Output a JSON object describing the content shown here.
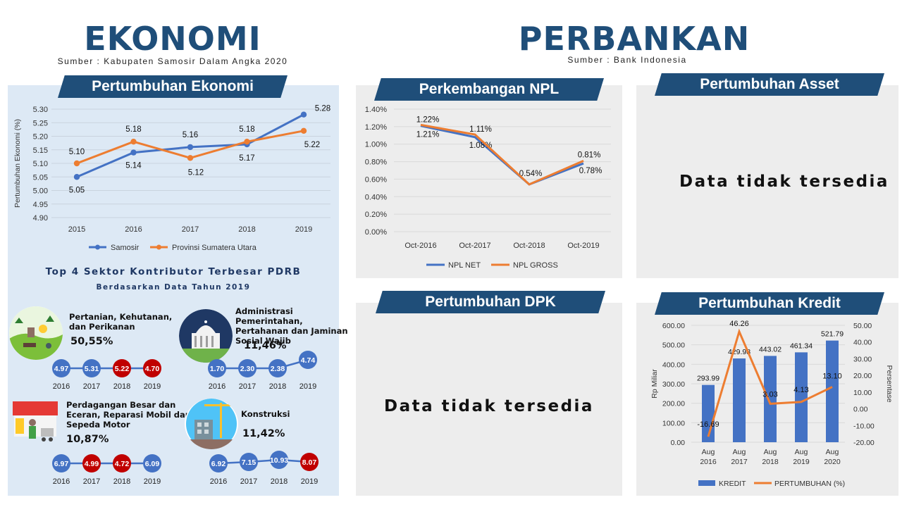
{
  "header": {
    "ekonomi_title": "EKONOMI",
    "ekonomi_source": "Sumber : Kabupaten Samosir Dalam Angka 2020",
    "perbankan_title": "PERBANKAN",
    "perbankan_source": "Sumber : Bank Indonesia"
  },
  "banners": {
    "pertumbuhan_ekonomi": "Pertumbuhan Ekonomi",
    "npl": "Perkembangan NPL",
    "asset": "Pertumbuhan Asset",
    "dpk": "Pertumbuhan DPK",
    "kredit": "Pertumbuhan Kredit"
  },
  "no_data": {
    "asset": "Data tidak tersedia",
    "dpk": "Data tidak tersedia"
  },
  "sectors": {
    "title": "Top 4 Sektor Kontributor Terbesar PDRB",
    "subtitle": "Berdasarkan Data Tahun 2019",
    "items": [
      {
        "name": "Pertanian, Kehutanan, dan Perikanan",
        "share": "50,55%",
        "values": [
          "4.97",
          "5.31",
          "5.22",
          "4.70"
        ],
        "years": [
          "2016",
          "2017",
          "2018",
          "2019"
        ]
      },
      {
        "name": "Administrasi Pemerintahan, Pertahanan dan Jaminan Sosial Wajib",
        "share": "11,46%",
        "values": [
          "1.70",
          "2.30",
          "2.38",
          "4.74"
        ],
        "years": [
          "2016",
          "2017",
          "2018",
          "2019"
        ]
      },
      {
        "name": "Perdagangan Besar dan Eceran, Reparasi Mobil dan Sepeda Motor",
        "share": "10,87%",
        "values": [
          "6.97",
          "4.99",
          "4.72",
          "6.09"
        ],
        "years": [
          "2016",
          "2017",
          "2018",
          "2019"
        ]
      },
      {
        "name": "Konstruksi",
        "share": "11,42%",
        "values": [
          "6.92",
          "7.15",
          "10.93",
          "8.07"
        ],
        "years": [
          "2016",
          "2017",
          "2018",
          "2019"
        ]
      }
    ]
  },
  "colors": {
    "navy": "#1f4e79",
    "blue": "#4472c4",
    "orange": "#ed7d31",
    "red": "#c00000"
  },
  "chart_data": [
    {
      "id": "pertumbuhan-ekonomi",
      "type": "line",
      "x": [
        "2015",
        "2016",
        "2017",
        "2018",
        "2019"
      ],
      "ylabel": "Pertumbuhan Ekonomi (%)",
      "ylim": [
        4.9,
        5.3
      ],
      "yticks": [
        "4.90",
        "4.95",
        "5.00",
        "5.05",
        "5.10",
        "5.15",
        "5.20",
        "5.25",
        "5.30"
      ],
      "grid": true,
      "legend": "bottom",
      "series": [
        {
          "name": "Samosir",
          "values": [
            5.05,
            5.14,
            5.16,
            5.17,
            5.28
          ],
          "labels": [
            "5.05",
            "5.14",
            "5.16",
            "5.17",
            "5.28"
          ]
        },
        {
          "name": "Provinsi Sumatera Utara",
          "values": [
            5.1,
            5.18,
            5.12,
            5.18,
            5.22
          ],
          "labels": [
            "5.10",
            "5.18",
            "5.12",
            "5.18",
            "5.22"
          ]
        }
      ]
    },
    {
      "id": "npl",
      "type": "line",
      "x": [
        "Oct-2016",
        "Oct-2017",
        "Oct-2018",
        "Oct-2019"
      ],
      "ylim": [
        0,
        1.4
      ],
      "yticks": [
        "0.00%",
        "0.20%",
        "0.40%",
        "0.60%",
        "0.80%",
        "1.00%",
        "1.20%",
        "1.40%"
      ],
      "grid": true,
      "legend": "bottom",
      "series": [
        {
          "name": "NPL NET",
          "values": [
            1.21,
            1.08,
            0.54,
            0.78
          ],
          "labels": [
            "1.21%",
            "1.08%",
            "0.54%",
            "0.78%"
          ]
        },
        {
          "name": "NPL GROSS",
          "values": [
            1.22,
            1.11,
            0.54,
            0.81
          ],
          "labels": [
            "1.22%",
            "1.11%",
            "",
            "0.81%"
          ]
        }
      ]
    },
    {
      "id": "kredit",
      "type": "bar",
      "categories": [
        "Aug 2016",
        "Aug 2017",
        "Aug 2018",
        "Aug 2019",
        "Aug 2020"
      ],
      "ylabel": "Rp Miliar",
      "y2label": "Persentase",
      "ylim": [
        0,
        600
      ],
      "y2lim": [
        -20,
        50
      ],
      "yticks": [
        "0.00",
        "100.00",
        "200.00",
        "300.00",
        "400.00",
        "500.00",
        "600.00"
      ],
      "y2ticks": [
        "-20.00",
        "-10.00",
        "0.00",
        "10.00",
        "20.00",
        "30.00",
        "40.00",
        "50.00"
      ],
      "grid": true,
      "legend": "bottom",
      "series": [
        {
          "name": "KREDIT",
          "values": [
            293.99,
            429.98,
            443.02,
            461.34,
            521.79
          ],
          "labels": [
            "293.99",
            "429.98",
            "443.02",
            "461.34",
            "521.79"
          ]
        },
        {
          "name": "PERTUMBUHAN (%)",
          "values": [
            -16.69,
            46.26,
            3.03,
            4.13,
            13.1
          ],
          "labels": [
            "-16.69",
            "46.26",
            "3.03",
            "4.13",
            "13.10"
          ]
        }
      ]
    }
  ]
}
